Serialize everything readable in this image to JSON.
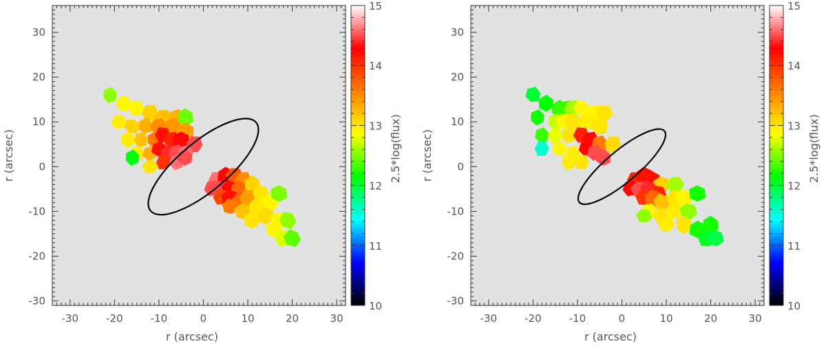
{
  "chart_data": [
    {
      "type": "heatmap",
      "xlabel": "r (arcsec)",
      "ylabel": "r (arcsec)",
      "xlim": [
        -34,
        32
      ],
      "ylim": [
        -31,
        36
      ],
      "xticks": [
        -30,
        -20,
        -10,
        0,
        10,
        20,
        30
      ],
      "yticks": [
        -30,
        -20,
        -10,
        0,
        10,
        20,
        30
      ],
      "background": "#e2e2e2",
      "colorbar": {
        "label": "2.5*log(flux)",
        "range": [
          10,
          15
        ],
        "ticks": [
          10,
          11,
          12,
          13,
          14,
          15
        ],
        "colormap": [
          "#000000",
          "#0000ff",
          "#00ffff",
          "#00ff00",
          "#ffff00",
          "#ff7f00",
          "#ff0000",
          "#ffffff"
        ]
      },
      "ellipse": {
        "center": [
          0,
          0
        ],
        "semi_major": 15.5,
        "semi_minor": 5.5,
        "angle_deg": -40
      },
      "cells": [
        {
          "x": -21,
          "y": 16,
          "v": 12.55
        },
        {
          "x": -18,
          "y": 14,
          "v": 12.9
        },
        {
          "x": -15,
          "y": 13,
          "v": 12.9
        },
        {
          "x": -12,
          "y": 12,
          "v": 13.1
        },
        {
          "x": -9,
          "y": 11,
          "v": 13.2
        },
        {
          "x": -6,
          "y": 11,
          "v": 13.3
        },
        {
          "x": -4,
          "y": 11,
          "v": 12.45
        },
        {
          "x": -19,
          "y": 10,
          "v": 12.95
        },
        {
          "x": -16,
          "y": 9,
          "v": 13.1
        },
        {
          "x": -13,
          "y": 9,
          "v": 13.3
        },
        {
          "x": -10,
          "y": 9,
          "v": 13.5
        },
        {
          "x": -7,
          "y": 9,
          "v": 13.45
        },
        {
          "x": -4,
          "y": 8,
          "v": 13.4
        },
        {
          "x": -17,
          "y": 6,
          "v": 12.95
        },
        {
          "x": -14,
          "y": 6,
          "v": 13.2
        },
        {
          "x": -11,
          "y": 6,
          "v": 13.6
        },
        {
          "x": -9,
          "y": 7,
          "v": 14.2
        },
        {
          "x": -7,
          "y": 6,
          "v": 14.1
        },
        {
          "x": -5,
          "y": 6,
          "v": 14.3
        },
        {
          "x": -2,
          "y": 5,
          "v": 14.5
        },
        {
          "x": -15,
          "y": 3,
          "v": 12.95
        },
        {
          "x": -12,
          "y": 3,
          "v": 13.3
        },
        {
          "x": -10,
          "y": 4,
          "v": 14.2
        },
        {
          "x": -8,
          "y": 3,
          "v": 14.4
        },
        {
          "x": -6,
          "y": 3,
          "v": 14.5
        },
        {
          "x": -4,
          "y": 3,
          "v": 14.6
        },
        {
          "x": -16,
          "y": 2,
          "v": 12.1
        },
        {
          "x": -12,
          "y": 0,
          "v": 13.0
        },
        {
          "x": -9,
          "y": 1,
          "v": 14.0
        },
        {
          "x": -6,
          "y": 1,
          "v": 14.6
        },
        {
          "x": -4,
          "y": 2,
          "v": 14.5
        },
        {
          "x": 3,
          "y": -3,
          "v": 14.6
        },
        {
          "x": 5,
          "y": -2,
          "v": 14.3
        },
        {
          "x": 7,
          "y": -2,
          "v": 13.8
        },
        {
          "x": 9,
          "y": -3,
          "v": 13.5
        },
        {
          "x": 2,
          "y": -5,
          "v": 14.5
        },
        {
          "x": 4,
          "y": -5,
          "v": 14.5
        },
        {
          "x": 6,
          "y": -5,
          "v": 14.3
        },
        {
          "x": 8,
          "y": -5,
          "v": 13.7
        },
        {
          "x": 11,
          "y": -4,
          "v": 13.1
        },
        {
          "x": 4,
          "y": -7,
          "v": 13.9
        },
        {
          "x": 6,
          "y": -7,
          "v": 14.2
        },
        {
          "x": 8,
          "y": -8,
          "v": 13.7
        },
        {
          "x": 10,
          "y": -7,
          "v": 13.4
        },
        {
          "x": 13,
          "y": -6,
          "v": 13.0
        },
        {
          "x": 6,
          "y": -9,
          "v": 13.6
        },
        {
          "x": 9,
          "y": -10,
          "v": 13.2
        },
        {
          "x": 12,
          "y": -9,
          "v": 13.0
        },
        {
          "x": 15,
          "y": -8,
          "v": 12.9
        },
        {
          "x": 17,
          "y": -6,
          "v": 12.5
        },
        {
          "x": 11,
          "y": -12,
          "v": 13.0
        },
        {
          "x": 14,
          "y": -11,
          "v": 13.05
        },
        {
          "x": 17,
          "y": -12,
          "v": 12.9
        },
        {
          "x": 19,
          "y": -12,
          "v": 12.55
        },
        {
          "x": 16,
          "y": -14,
          "v": 12.9
        },
        {
          "x": 18,
          "y": -16,
          "v": 12.75
        },
        {
          "x": 20,
          "y": -16,
          "v": 12.4
        }
      ]
    },
    {
      "type": "heatmap",
      "xlabel": "r (arcsec)",
      "ylabel": "r (arcsec)",
      "xlim": [
        -34,
        32
      ],
      "ylim": [
        -31,
        36
      ],
      "xticks": [
        -30,
        -20,
        -10,
        0,
        10,
        20,
        30
      ],
      "yticks": [
        -30,
        -20,
        -10,
        0,
        10,
        20,
        30
      ],
      "background": "#e2e2e2",
      "colorbar": {
        "label": "2.5*log(flux)",
        "range": [
          10,
          15
        ],
        "ticks": [
          10,
          11,
          12,
          13,
          14,
          15
        ],
        "colormap": [
          "#000000",
          "#0000ff",
          "#00ffff",
          "#00ff00",
          "#ffff00",
          "#ff7f00",
          "#ff0000",
          "#ffffff"
        ]
      },
      "ellipse": {
        "center": [
          0,
          0
        ],
        "semi_major": 12.5,
        "semi_minor": 3.5,
        "angle_deg": -40
      },
      "cells": [
        {
          "x": -20,
          "y": 16,
          "v": 12.0
        },
        {
          "x": -17,
          "y": 14,
          "v": 12.15
        },
        {
          "x": -14,
          "y": 13,
          "v": 12.3
        },
        {
          "x": -12,
          "y": 13,
          "v": 12.3
        },
        {
          "x": -11,
          "y": 13,
          "v": 12.6
        },
        {
          "x": -9,
          "y": 13,
          "v": 12.9
        },
        {
          "x": -6,
          "y": 12,
          "v": 12.9
        },
        {
          "x": -4,
          "y": 12,
          "v": 13.0
        },
        {
          "x": -19,
          "y": 11,
          "v": 12.2
        },
        {
          "x": -15,
          "y": 10,
          "v": 12.7
        },
        {
          "x": -13,
          "y": 10,
          "v": 12.9
        },
        {
          "x": -11,
          "y": 10,
          "v": 13.0
        },
        {
          "x": -8,
          "y": 10,
          "v": 12.95
        },
        {
          "x": -5,
          "y": 9,
          "v": 13.0
        },
        {
          "x": -18,
          "y": 7,
          "v": 12.3
        },
        {
          "x": -15,
          "y": 7,
          "v": 12.8
        },
        {
          "x": -12,
          "y": 7,
          "v": 13.0
        },
        {
          "x": -9,
          "y": 7,
          "v": 14.1
        },
        {
          "x": -7,
          "y": 6,
          "v": 14.3
        },
        {
          "x": -5,
          "y": 5,
          "v": 13.6
        },
        {
          "x": -2,
          "y": 5,
          "v": 13.05
        },
        {
          "x": -18,
          "y": 4,
          "v": 11.55
        },
        {
          "x": -14,
          "y": 4,
          "v": 12.9
        },
        {
          "x": -11,
          "y": 3,
          "v": 12.95
        },
        {
          "x": -8,
          "y": 4,
          "v": 14.3
        },
        {
          "x": -6,
          "y": 3,
          "v": 14.5
        },
        {
          "x": -4,
          "y": 2,
          "v": 14.5
        },
        {
          "x": -12,
          "y": 1,
          "v": 12.95
        },
        {
          "x": -9,
          "y": 1,
          "v": 13.0
        },
        {
          "x": 3,
          "y": -3,
          "v": 14.1
        },
        {
          "x": 5,
          "y": -2,
          "v": 14.2
        },
        {
          "x": 7,
          "y": -3,
          "v": 14.2
        },
        {
          "x": 9,
          "y": -4,
          "v": 13.1
        },
        {
          "x": 2,
          "y": -5,
          "v": 14.3
        },
        {
          "x": 4,
          "y": -5,
          "v": 14.5
        },
        {
          "x": 6,
          "y": -5,
          "v": 14.4
        },
        {
          "x": 8,
          "y": -6,
          "v": 14.1
        },
        {
          "x": 12,
          "y": -4,
          "v": 12.6
        },
        {
          "x": 5,
          "y": -7,
          "v": 14.0
        },
        {
          "x": 7,
          "y": -7,
          "v": 13.7
        },
        {
          "x": 9,
          "y": -8,
          "v": 13.2
        },
        {
          "x": 12,
          "y": -7,
          "v": 13.0
        },
        {
          "x": 14,
          "y": -7,
          "v": 12.9
        },
        {
          "x": 17,
          "y": -6,
          "v": 12.2
        },
        {
          "x": 6,
          "y": -10,
          "v": 12.9
        },
        {
          "x": 9,
          "y": -11,
          "v": 13.0
        },
        {
          "x": 12,
          "y": -10,
          "v": 12.95
        },
        {
          "x": 15,
          "y": -10,
          "v": 12.55
        },
        {
          "x": 5,
          "y": -11,
          "v": 12.55
        },
        {
          "x": 10,
          "y": -13,
          "v": 12.95
        },
        {
          "x": 14,
          "y": -13,
          "v": 13.0
        },
        {
          "x": 17,
          "y": -14,
          "v": 12.2
        },
        {
          "x": 20,
          "y": -13,
          "v": 12.2
        },
        {
          "x": 19,
          "y": -16,
          "v": 12.05
        },
        {
          "x": 21,
          "y": -16,
          "v": 11.95
        }
      ]
    }
  ]
}
